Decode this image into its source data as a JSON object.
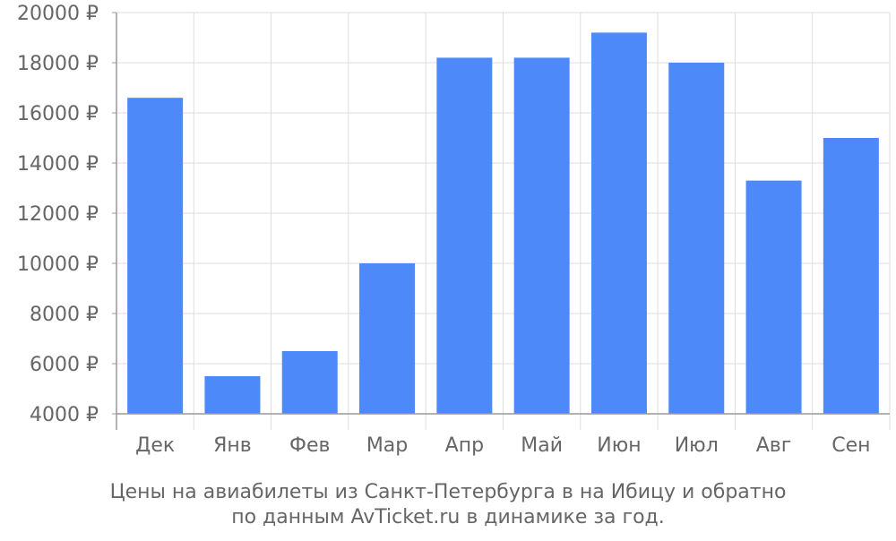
{
  "caption": {
    "line1": "Цены на авиабилеты из Санкт-Петербурга в на Ибицу и обратно",
    "line2": "по данным AvTicket.ru в динамике за год."
  },
  "chart_data": {
    "type": "bar",
    "categories": [
      "Дек",
      "Янв",
      "Фев",
      "Мар",
      "Апр",
      "Май",
      "Июн",
      "Июл",
      "Авг",
      "Сен"
    ],
    "values": [
      16600,
      5500,
      6500,
      10000,
      18200,
      18200,
      19200,
      18000,
      13300,
      15000
    ],
    "ylim": [
      4000,
      20000
    ],
    "yticks": [
      4000,
      6000,
      8000,
      10000,
      12000,
      14000,
      16000,
      18000,
      20000
    ],
    "ytick_labels": [
      "4000 ₽",
      "6000 ₽",
      "8000 ₽",
      "10000 ₽",
      "12000 ₽",
      "14000 ₽",
      "16000 ₽",
      "18000 ₽",
      "20000 ₽"
    ],
    "grid": true,
    "bar_color": "#4d89f9",
    "grid_color": "#dddddd",
    "axis_color": "#999999",
    "text_color": "#666666"
  }
}
